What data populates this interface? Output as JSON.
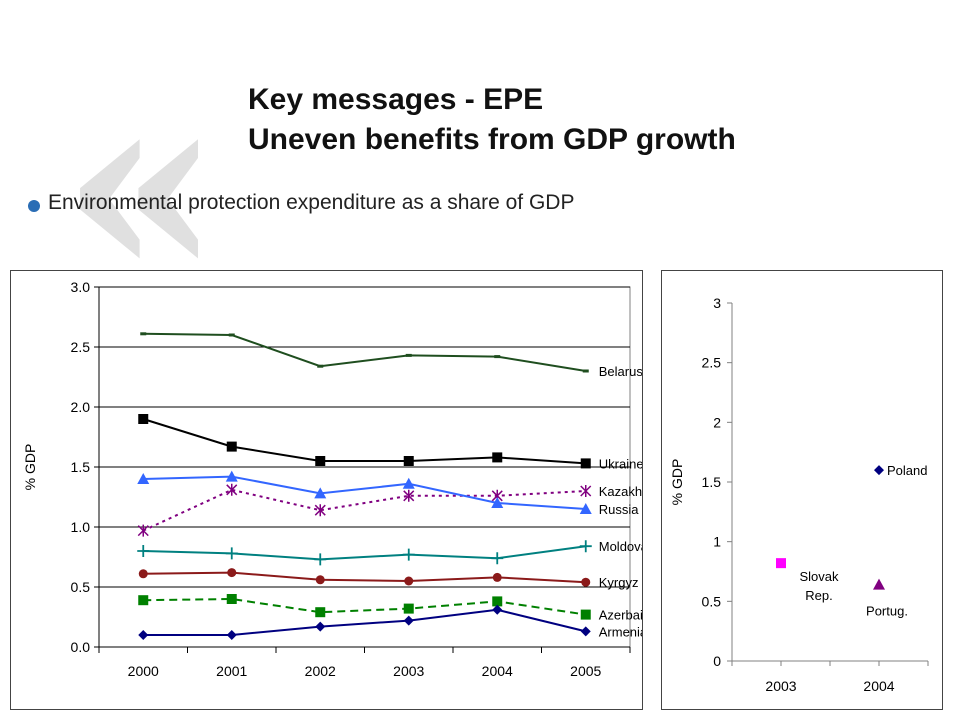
{
  "slide": {
    "title_line1": "Key messages - EPE",
    "title_line2": "Uneven benefits from GDP growth",
    "bullet": "Environmental protection expenditure as a share of GDP"
  },
  "chart_data": [
    {
      "type": "line",
      "ylabel": "% GDP",
      "xlabel": "",
      "categories": [
        "2000",
        "2001",
        "2002",
        "2003",
        "2004",
        "2005"
      ],
      "ylim": [
        0,
        3
      ],
      "yticks": [
        "0.0",
        "0.5",
        "1.0",
        "1.5",
        "2.0",
        "2.5",
        "3.0"
      ],
      "grid": true,
      "legend": "series labels at right end of each line",
      "series": [
        {
          "name": "Belarus",
          "values": [
            2.61,
            2.6,
            2.34,
            2.43,
            2.42,
            2.3
          ],
          "color": "#1f4e1f",
          "marker": "dash",
          "dashed": false
        },
        {
          "name": "Ukraine",
          "values": [
            1.9,
            1.67,
            1.55,
            1.55,
            1.58,
            1.53
          ],
          "color": "#000000",
          "marker": "square",
          "dashed": false
        },
        {
          "name": "Kazakhstan",
          "values": [
            0.97,
            1.31,
            1.14,
            1.26,
            1.26,
            1.3
          ],
          "color": "#800080",
          "marker": "star",
          "dashed": true
        },
        {
          "name": "Russia",
          "values": [
            1.4,
            1.42,
            1.28,
            1.36,
            1.2,
            1.15
          ],
          "color": "#3366ff",
          "marker": "triangle",
          "dashed": false
        },
        {
          "name": "Moldova",
          "values": [
            0.8,
            0.78,
            0.73,
            0.77,
            0.74,
            0.84
          ],
          "color": "#008080",
          "marker": "plus",
          "dashed": false
        },
        {
          "name": "Kyrgyz Rep.",
          "values": [
            0.61,
            0.62,
            0.56,
            0.55,
            0.58,
            0.54
          ],
          "color": "#8b1a1a",
          "marker": "circle",
          "dashed": false
        },
        {
          "name": "Azerbaijan",
          "values": [
            0.39,
            0.4,
            0.29,
            0.32,
            0.38,
            0.27
          ],
          "color": "#008000",
          "marker": "square",
          "dashed": true
        },
        {
          "name": "Armenia",
          "values": [
            0.1,
            0.1,
            0.17,
            0.22,
            0.31,
            0.13
          ],
          "color": "#000080",
          "marker": "diamond",
          "dashed": false
        }
      ]
    },
    {
      "type": "scatter",
      "ylabel": "% GDP",
      "xlabel": "",
      "categories": [
        "2003",
        "2004"
      ],
      "ylim": [
        0,
        3
      ],
      "yticks": [
        "0",
        "0.5",
        "1",
        "1.5",
        "2",
        "2.5",
        "3"
      ],
      "grid": false,
      "series": [
        {
          "name": "Poland",
          "x": "2004",
          "y": 1.6,
          "color": "#000080",
          "marker": "diamond"
        },
        {
          "name": "Slovak Rep.",
          "x": "2003",
          "y": 0.82,
          "color": "#ff00ff",
          "marker": "square"
        },
        {
          "name": "Portug.",
          "x": "2004",
          "y": 0.64,
          "color": "#800080",
          "marker": "triangle"
        }
      ]
    }
  ]
}
